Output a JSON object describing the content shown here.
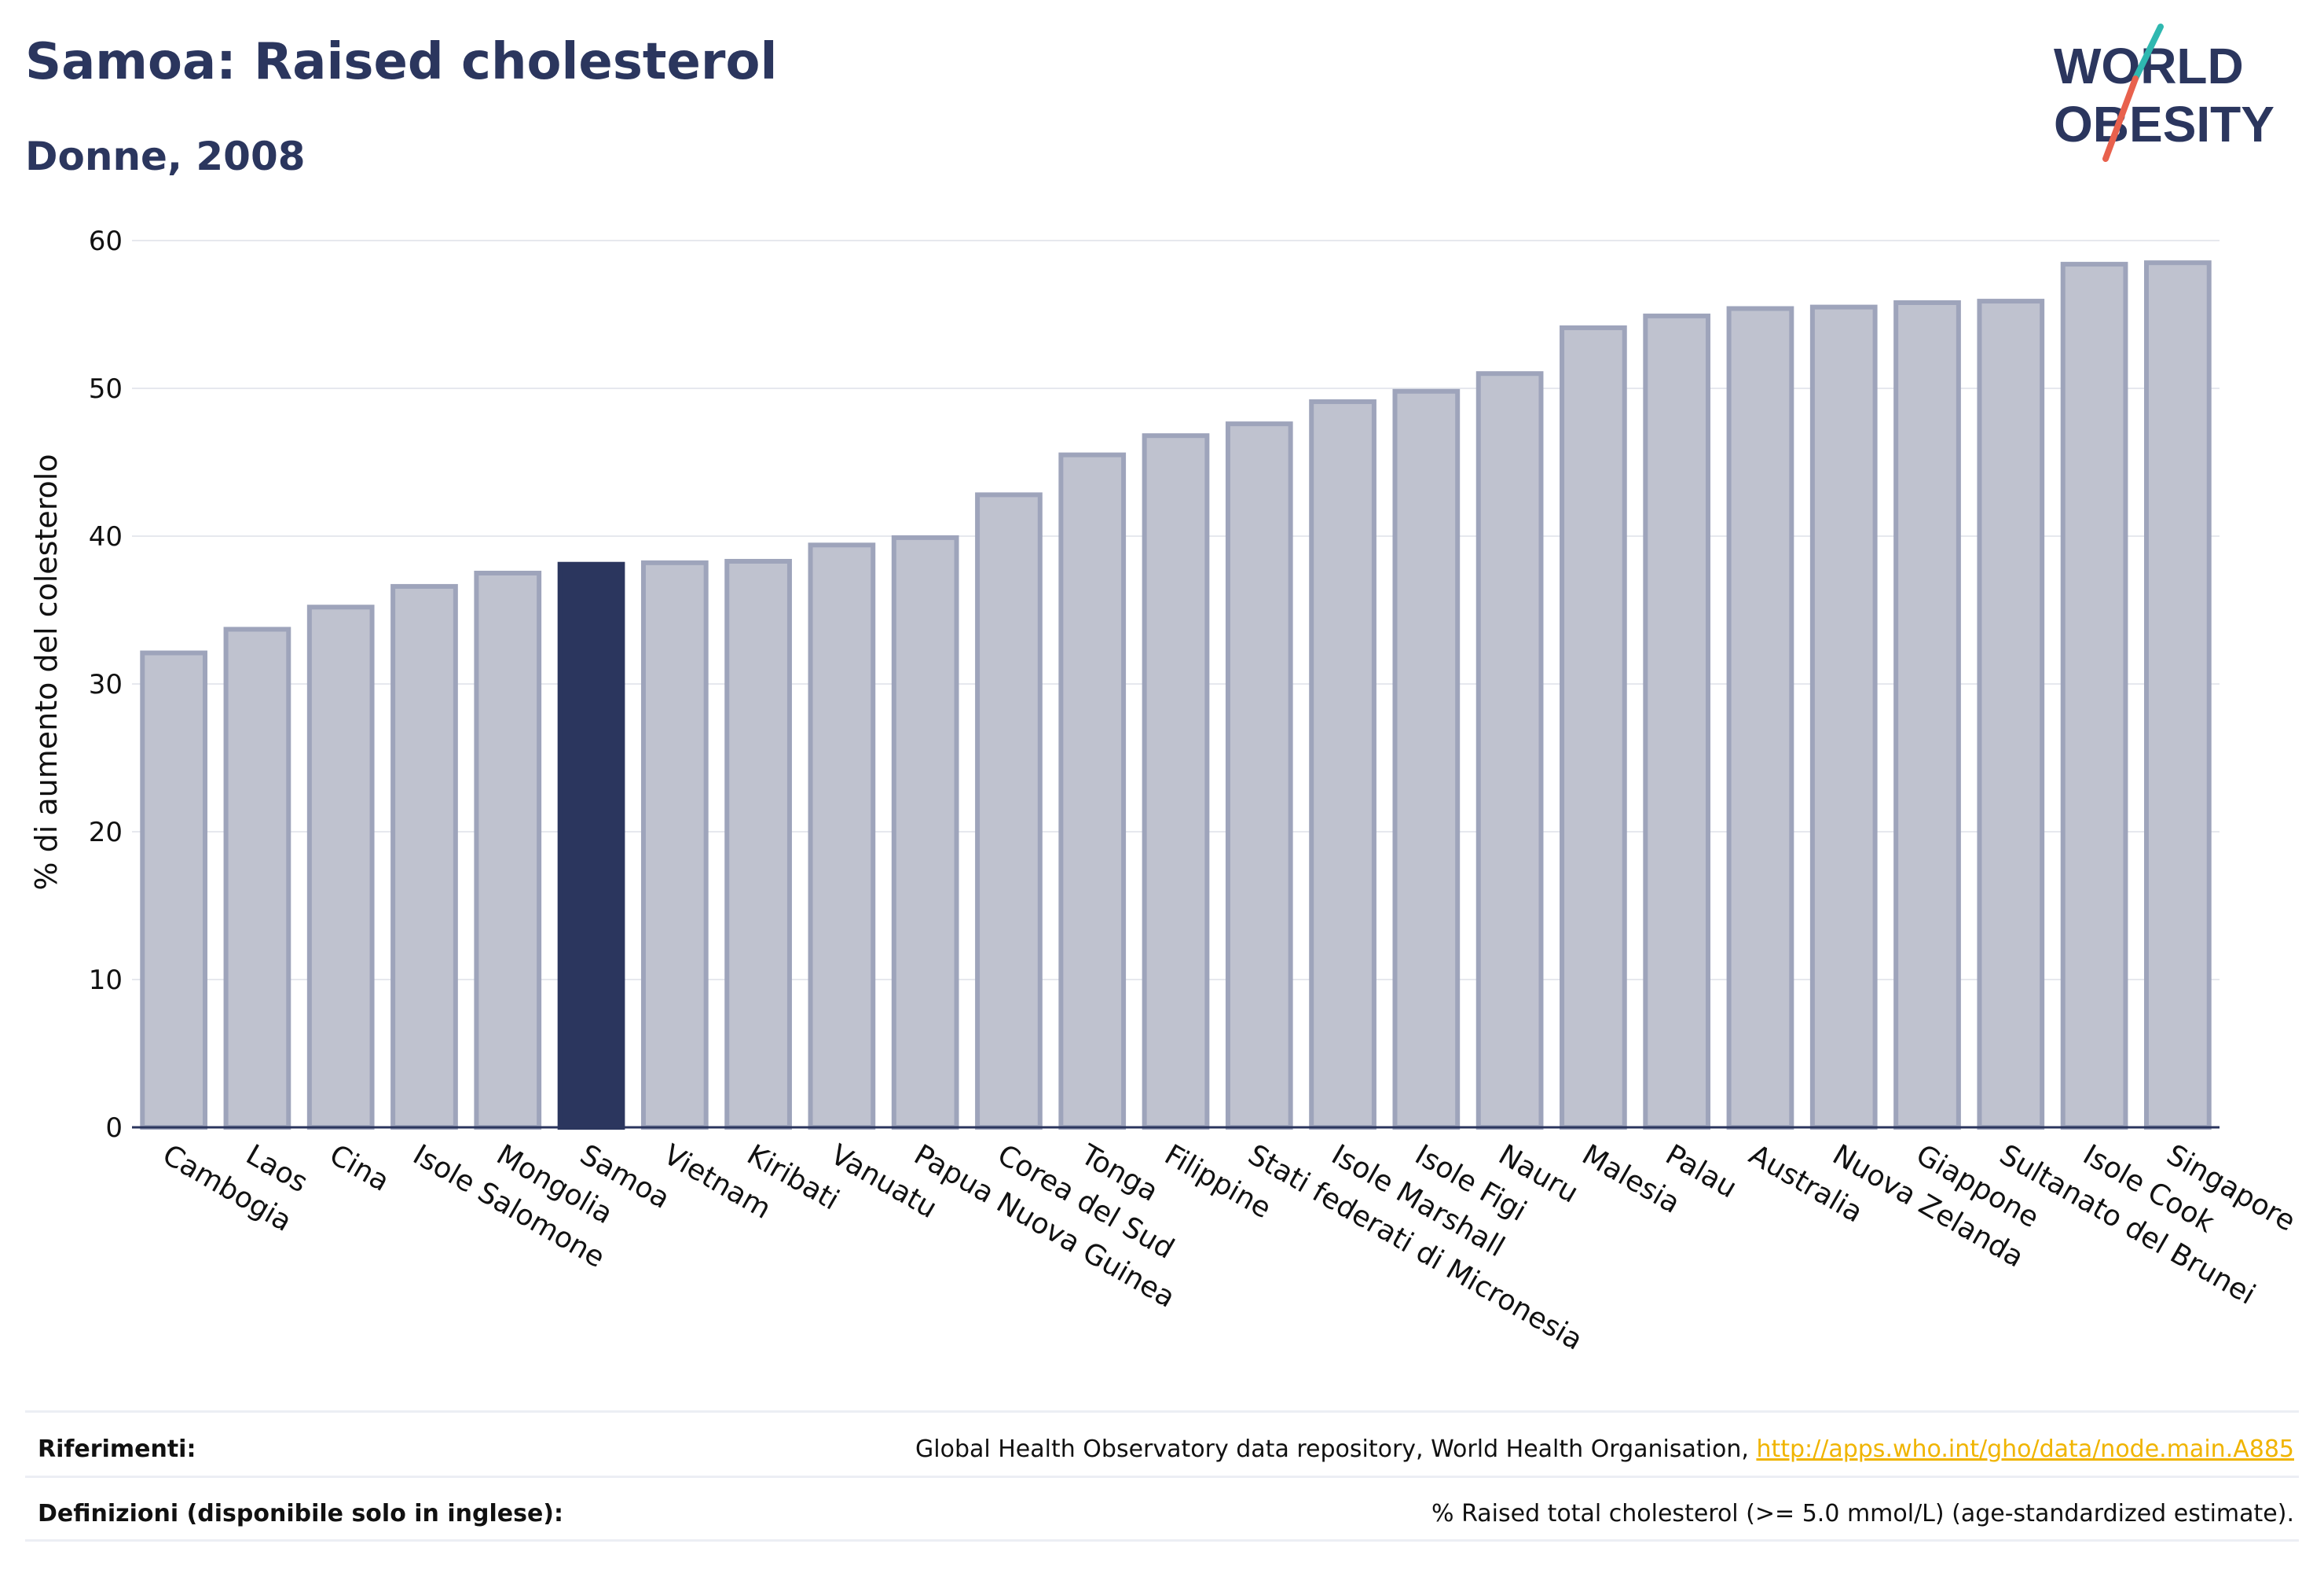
{
  "title": "Samoa: Raised cholesterol",
  "subtitle": "Donne, 2008",
  "logo": {
    "line1": "WORLD",
    "line2": "OBESITY"
  },
  "chart_data": {
    "type": "bar",
    "ylabel": "% di aumento del colesterolo",
    "ylim": [
      0,
      60
    ],
    "yticks": [
      0,
      10,
      20,
      30,
      40,
      50,
      60
    ],
    "grid": true,
    "highlight": "Samoa",
    "colors": {
      "bar": "#bfc2cf",
      "bar_edge": "#9ea4bb",
      "highlight": "#2b365e",
      "grid": "#e6e8ee"
    },
    "categories": [
      "Cambogia",
      "Laos",
      "Cina",
      "Isole Salomone",
      "Mongolia",
      "Samoa",
      "Vietnam",
      "Kiribati",
      "Vanuatu",
      "Papua Nuova Guinea",
      "Corea del Sud",
      "Tonga",
      "Filippine",
      "Stati federati di Micronesia",
      "Isole Marshall",
      "Isole Figi",
      "Nauru",
      "Malesia",
      "Palau",
      "Australia",
      "Nuova Zelanda",
      "Giappone",
      "Sultanato del Brunei",
      "Isole Cook",
      "Singapore"
    ],
    "values": [
      32.1,
      33.7,
      35.2,
      36.6,
      37.5,
      38.1,
      38.2,
      38.3,
      39.4,
      39.9,
      42.8,
      45.5,
      46.8,
      47.6,
      49.1,
      49.8,
      51.0,
      54.1,
      54.9,
      55.4,
      55.5,
      55.8,
      55.9,
      58.4,
      58.5
    ]
  },
  "footer": {
    "references_label": "Riferimenti:",
    "references_text": "Global Health Observatory data repository, World Health Organisation, ",
    "references_link": "http://apps.who.int/gho/data/node.main.A885",
    "definitions_label": "Definizioni (disponibile solo in inglese):",
    "definitions_text": "% Raised total cholesterol (>= 5.0 mmol/L) (age-standardized estimate)."
  }
}
